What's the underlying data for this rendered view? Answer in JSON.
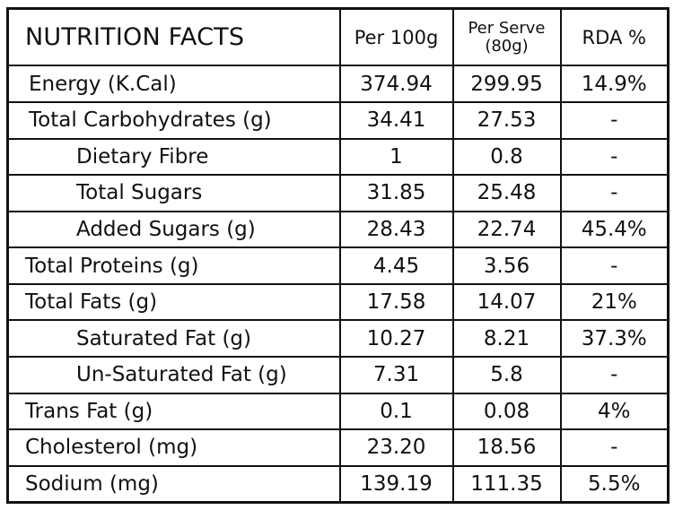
{
  "header": {
    "title": "NUTRITION FACTS",
    "per_100g": "Per 100g",
    "per_serve_line1": "Per Serve",
    "per_serve_line2": "(80g)",
    "rda": "RDA %"
  },
  "rows": [
    {
      "name": "Energy (K.Cal)",
      "per_100g": "374.94",
      "per_serve": "299.95",
      "rda": "14.9%"
    },
    {
      "name": "Total Carbohydrates (g)",
      "per_100g": "34.41",
      "per_serve": "27.53",
      "rda": "-"
    },
    {
      "name": "Dietary Fibre",
      "per_100g": "1",
      "per_serve": "0.8",
      "rda": "-"
    },
    {
      "name": "Total Sugars",
      "per_100g": "31.85",
      "per_serve": "25.48",
      "rda": "-"
    },
    {
      "name": "Added Sugars (g)",
      "per_100g": "28.43",
      "per_serve": "22.74",
      "rda": "45.4%"
    },
    {
      "name": "Total Proteins (g)",
      "per_100g": "4.45",
      "per_serve": "3.56",
      "rda": "-"
    },
    {
      "name": "Total Fats (g)",
      "per_100g": "17.58",
      "per_serve": "14.07",
      "rda": "21%"
    },
    {
      "name": "Saturated Fat (g)",
      "per_100g": "10.27",
      "per_serve": "8.21",
      "rda": "37.3%"
    },
    {
      "name": "Un-Saturated Fat (g)",
      "per_100g": "7.31",
      "per_serve": "5.8",
      "rda": "-"
    },
    {
      "name": "Trans Fat (g)",
      "per_100g": "0.1",
      "per_serve": "0.08",
      "rda": "4%"
    },
    {
      "name": "Cholesterol (mg)",
      "per_100g": "23.20",
      "per_serve": "18.56",
      "rda": "-"
    },
    {
      "name": "Sodium (mg)",
      "per_100g": "139.19",
      "per_serve": "111.35",
      "rda": "5.5%"
    }
  ]
}
